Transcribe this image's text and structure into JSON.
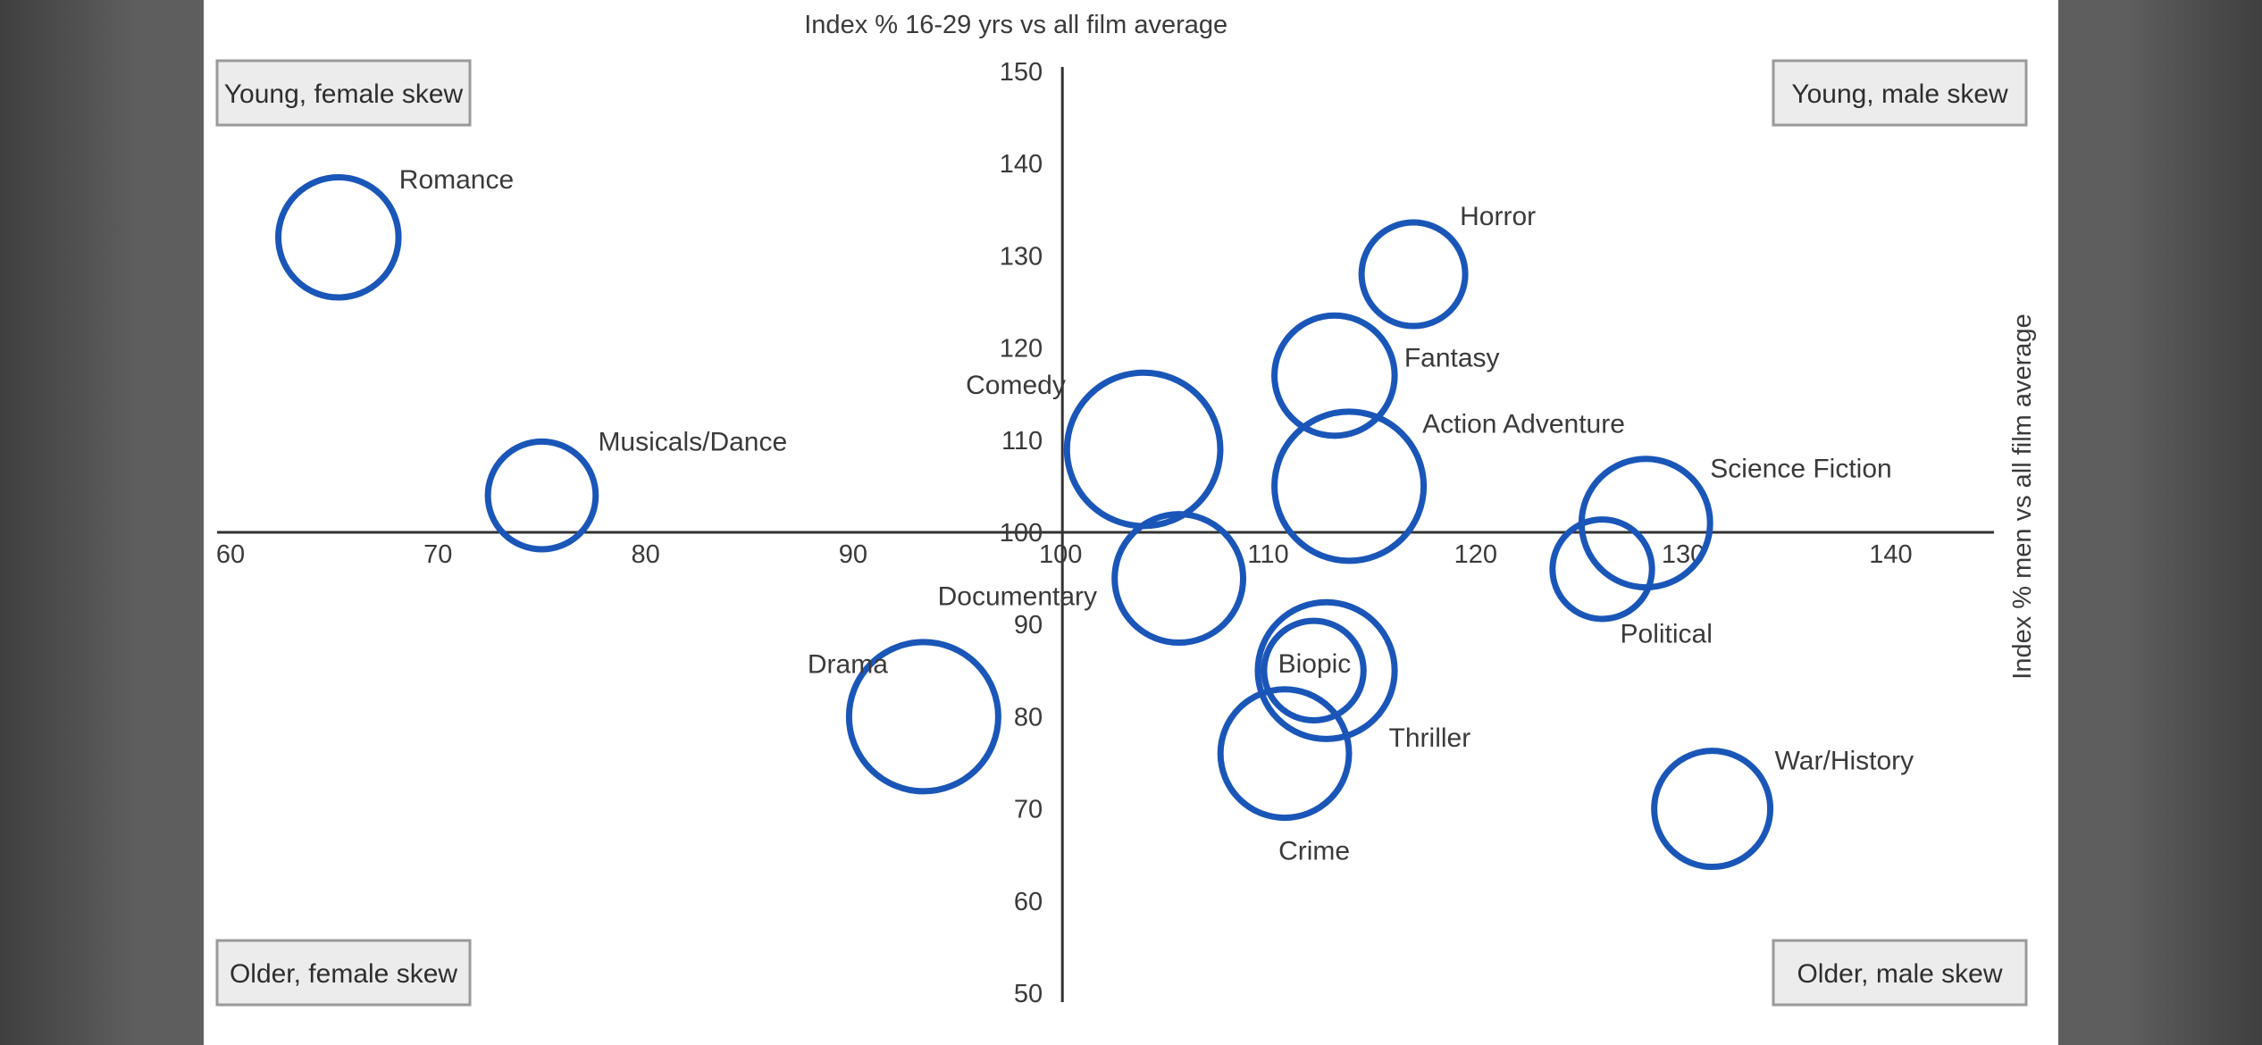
{
  "chart_data": {
    "type": "scatter",
    "subtype": "bubble",
    "title": "",
    "xlabel": "Index % 16-29 yrs vs all film average",
    "ylabel": "Index % men vs all film average",
    "xlim": [
      60,
      145
    ],
    "ylim": [
      50,
      150
    ],
    "x_ticks": [
      60,
      70,
      80,
      90,
      100,
      110,
      120,
      130,
      140
    ],
    "y_ticks": [
      50,
      60,
      70,
      80,
      90,
      100,
      110,
      120,
      130,
      140,
      150
    ],
    "axes_cross": {
      "x": 100,
      "y": 100
    },
    "grid": false,
    "legend": "none",
    "bubble_color": "#1a56b8",
    "quadrants": [
      "Young, female skew",
      "Young, male skew",
      "Older, female skew",
      "Older, male skew"
    ],
    "points": [
      {
        "label": "Romance",
        "x": 65.2,
        "y": 132,
        "size": 29
      },
      {
        "label": "Musicals/Dance",
        "x": 75.0,
        "y": 104,
        "size": 26
      },
      {
        "label": "Drama",
        "x": 93.4,
        "y": 80,
        "size": 36
      },
      {
        "label": "Comedy",
        "x": 104.0,
        "y": 109,
        "size": 37
      },
      {
        "label": "Documentary",
        "x": 105.7,
        "y": 95,
        "size": 31
      },
      {
        "label": "Horror",
        "x": 117.0,
        "y": 128,
        "size": 25
      },
      {
        "label": "Fantasy",
        "x": 113.2,
        "y": 117,
        "size": 29
      },
      {
        "label": "Action Adventure",
        "x": 113.9,
        "y": 105,
        "size": 36
      },
      {
        "label": "Science Fiction",
        "x": 128.2,
        "y": 101,
        "size": 31
      },
      {
        "label": "Political",
        "x": 126.1,
        "y": 96,
        "size": 24
      },
      {
        "label": "Biopic",
        "x": 112.2,
        "y": 85,
        "size": 24
      },
      {
        "label": "Thriller",
        "x": 112.8,
        "y": 85,
        "size": 33
      },
      {
        "label": "Crime",
        "x": 110.8,
        "y": 76,
        "size": 31
      },
      {
        "label": "War/History",
        "x": 131.4,
        "y": 70,
        "size": 28
      }
    ]
  }
}
